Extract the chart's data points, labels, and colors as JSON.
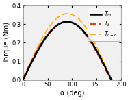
{
  "title": "",
  "xlabel": "α (deg)",
  "ylabel": "Torque (Nm)",
  "xlim": [
    0,
    200
  ],
  "ylim": [
    0,
    0.4
  ],
  "xticks": [
    0,
    50,
    100,
    150,
    200
  ],
  "yticks": [
    0.0,
    0.1,
    0.2,
    0.3,
    0.4
  ],
  "Tm_color": "#000000",
  "Tb_color": "#cc2200",
  "Tob_color": "#ffaa00",
  "Tm_amplitude": 0.314,
  "Tb_amplitude": 0.314,
  "Tob_amplitude": 0.357,
  "background_color": "#f0f0f0",
  "figure_color": "#ffffff",
  "figsize": [
    1.9,
    1.46
  ],
  "dpi": 100
}
